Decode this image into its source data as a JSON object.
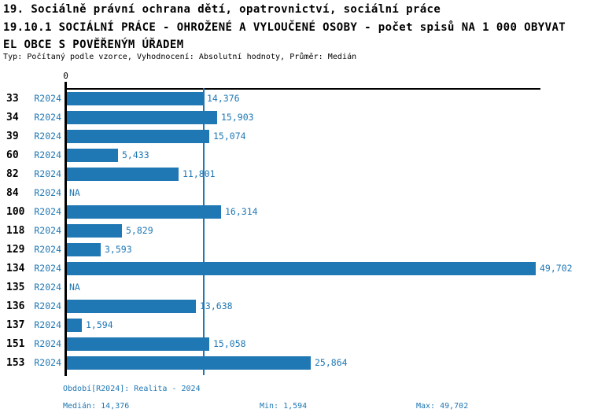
{
  "header": {
    "title": "19. Sociálně právní ochrana dětí, opatrovnictví, sociální práce",
    "subtitle_lines": [
      "19.10.1 SOCIÁLNÍ PRÁCE - OHROŽENÉ A VYLOUČENÉ OSOBY - počet spisů NA 1 000 OBYVAT",
      "EL OBCE S POVĚŘENÝM ÚŘADEM"
    ],
    "meta": "Typ: Počítaný podle vzorce, Vyhodnocení: Absolutní hodnoty, Průměr: Medián"
  },
  "chart_data": {
    "type": "bar",
    "orientation": "horizontal",
    "title": "19.10.1 SOCIÁLNÍ PRÁCE - OHROŽENÉ A VYLOUČENÉ OSOBY - počet spisů NA 1 000 OBYVATEL OBCE S POVĚŘENÝM ÚŘADEM",
    "series_label": "R2024",
    "zero_tick_label": "0",
    "categories": [
      "33",
      "34",
      "39",
      "60",
      "82",
      "84",
      "100",
      "118",
      "129",
      "134",
      "135",
      "136",
      "137",
      "151",
      "153"
    ],
    "values": [
      14376,
      15903,
      15074,
      5433,
      11801,
      null,
      16314,
      5829,
      3593,
      49702,
      null,
      13638,
      1594,
      15058,
      25864
    ],
    "value_labels": [
      "14,376",
      "15,903",
      "15,074",
      "5,433",
      "11,801",
      "NA",
      "16,314",
      "5,829",
      "3,593",
      "49,702",
      "NA",
      "13,638",
      "1,594",
      "15,058",
      "25,864"
    ],
    "na_label": "NA",
    "median": 14376,
    "min": 1594,
    "max": 49702,
    "xlim": [
      0,
      49702
    ],
    "bar_color": "#1f77b4",
    "median_line": true,
    "grid": false,
    "legend_position": "none"
  },
  "footer": {
    "period": "Období[R2024]: Realita - 2024",
    "median": "Medián: 14,376",
    "min": "Min: 1,594",
    "max": "Max: 49,702"
  },
  "colors": {
    "accent": "#1f77b4",
    "axis": "#000000",
    "background": "#ffffff"
  }
}
